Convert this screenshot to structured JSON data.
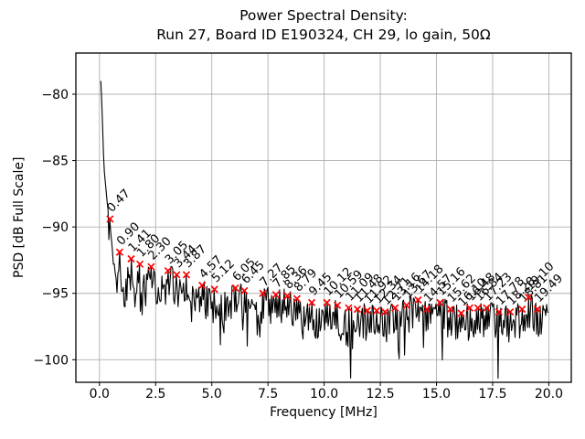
{
  "figure": {
    "background": "#ffffff"
  },
  "chart_data": {
    "type": "line",
    "title_lines": [
      "Power Spectral Density:",
      "Run 27, Board ID E190324, CH 29, lo gain, 50Ω"
    ],
    "xlabel": "Frequency [MHz]",
    "ylabel": "PSD [dB Full Scale]",
    "xlim": [
      -1.05,
      21.0
    ],
    "ylim": [
      -101.7,
      -76.9
    ],
    "grid": true,
    "grid_color": "#b0b0b0",
    "spine_color": "#000000",
    "line_color": "#000000",
    "marker_style": {
      "symbol": "x",
      "color": "#ff0000",
      "size": 7
    },
    "x_ticks": {
      "values": [
        0.0,
        2.5,
        5.0,
        7.5,
        10.0,
        12.5,
        15.0,
        17.5,
        20.0
      ],
      "labels": [
        "0.0",
        "2.5",
        "5.0",
        "7.5",
        "10.0",
        "12.5",
        "15.0",
        "17.5",
        "20.0"
      ]
    },
    "y_ticks": {
      "values": [
        -80,
        -85,
        -90,
        -95,
        -100
      ],
      "labels": [
        "−80",
        "−85",
        "−90",
        "−95",
        "−100"
      ]
    },
    "peaks": [
      {
        "freq_mhz": 0.47,
        "psd_db": -89.4,
        "label": "0.47"
      },
      {
        "freq_mhz": 0.9,
        "psd_db": -91.9,
        "label": "0.90"
      },
      {
        "freq_mhz": 1.41,
        "psd_db": -92.4,
        "label": "1.41"
      },
      {
        "freq_mhz": 1.8,
        "psd_db": -92.8,
        "label": "1.80"
      },
      {
        "freq_mhz": 2.3,
        "psd_db": -93.0,
        "label": "2.30"
      },
      {
        "freq_mhz": 3.05,
        "psd_db": -93.3,
        "label": "3.05"
      },
      {
        "freq_mhz": 3.44,
        "psd_db": -93.6,
        "label": "3.44"
      },
      {
        "freq_mhz": 3.87,
        "psd_db": -93.6,
        "label": "3.87"
      },
      {
        "freq_mhz": 4.57,
        "psd_db": -94.4,
        "label": "4.57"
      },
      {
        "freq_mhz": 5.12,
        "psd_db": -94.7,
        "label": "5.12"
      },
      {
        "freq_mhz": 6.05,
        "psd_db": -94.6,
        "label": "6.05"
      },
      {
        "freq_mhz": 6.45,
        "psd_db": -94.8,
        "label": "6.45"
      },
      {
        "freq_mhz": 7.27,
        "psd_db": -95.0,
        "label": "7.27"
      },
      {
        "freq_mhz": 7.85,
        "psd_db": -95.1,
        "label": "7.85"
      },
      {
        "freq_mhz": 8.36,
        "psd_db": -95.2,
        "label": "8.36"
      },
      {
        "freq_mhz": 8.79,
        "psd_db": -95.4,
        "label": "8.79"
      },
      {
        "freq_mhz": 9.45,
        "psd_db": -95.7,
        "label": "9.45"
      },
      {
        "freq_mhz": 10.12,
        "psd_db": -95.7,
        "label": "10.12"
      },
      {
        "freq_mhz": 10.59,
        "psd_db": -95.9,
        "label": "10.59"
      },
      {
        "freq_mhz": 11.09,
        "psd_db": -96.1,
        "label": "11.09"
      },
      {
        "freq_mhz": 11.48,
        "psd_db": -96.2,
        "label": "11.48"
      },
      {
        "freq_mhz": 11.92,
        "psd_db": -96.3,
        "label": "11.92"
      },
      {
        "freq_mhz": 12.34,
        "psd_db": -96.3,
        "label": "12.34"
      },
      {
        "freq_mhz": 12.71,
        "psd_db": -96.4,
        "label": "12.71"
      },
      {
        "freq_mhz": 13.16,
        "psd_db": -96.1,
        "label": "13.16"
      },
      {
        "freq_mhz": 13.67,
        "psd_db": -95.9,
        "label": "13.67"
      },
      {
        "freq_mhz": 14.18,
        "psd_db": -95.5,
        "label": "14.18"
      },
      {
        "freq_mhz": 14.57,
        "psd_db": -96.2,
        "label": "14.57"
      },
      {
        "freq_mhz": 15.16,
        "psd_db": -95.7,
        "label": "15.16"
      },
      {
        "freq_mhz": 15.62,
        "psd_db": -96.2,
        "label": "15.62"
      },
      {
        "freq_mhz": 16.1,
        "psd_db": -96.5,
        "label": "16.10"
      },
      {
        "freq_mhz": 16.48,
        "psd_db": -96.1,
        "label": "16.48"
      },
      {
        "freq_mhz": 16.84,
        "psd_db": -96.1,
        "label": "16.84"
      },
      {
        "freq_mhz": 17.23,
        "psd_db": -96.1,
        "label": "17.23"
      },
      {
        "freq_mhz": 17.78,
        "psd_db": -96.4,
        "label": "17.78"
      },
      {
        "freq_mhz": 18.28,
        "psd_db": -96.4,
        "label": "18.28"
      },
      {
        "freq_mhz": 18.81,
        "psd_db": -96.2,
        "label": "18.81"
      },
      {
        "freq_mhz": 19.1,
        "psd_db": -95.3,
        "label": "19.10"
      },
      {
        "freq_mhz": 19.49,
        "psd_db": -96.2,
        "label": "19.49"
      }
    ],
    "baseline_anchors": {
      "f": [
        0.06,
        0.1,
        0.2,
        0.35,
        0.5,
        0.62,
        0.75,
        0.9,
        1.05,
        1.2,
        1.41,
        1.6,
        1.8,
        2.0,
        2.3,
        2.6,
        3.05,
        3.44,
        3.87,
        4.2,
        4.57,
        5.0,
        5.4,
        6.05,
        6.45,
        7.0,
        7.27,
        7.85,
        8.36,
        8.79,
        9.1,
        9.45,
        9.8,
        10.12,
        10.59,
        11.0,
        11.48,
        11.92,
        12.34,
        12.71,
        13.16,
        13.67,
        14.18,
        14.57,
        15.16,
        15.62,
        16.1,
        16.48,
        16.84,
        17.23,
        17.78,
        18.28,
        18.81,
        19.1,
        19.49,
        20.0
      ],
      "psd": [
        -79.0,
        -80.5,
        -85.5,
        -88.3,
        -90.3,
        -92.6,
        -93.9,
        -92.2,
        -94.8,
        -94.2,
        -92.8,
        -94.6,
        -93.2,
        -94.6,
        -93.4,
        -94.9,
        -93.7,
        -94.0,
        -94.0,
        -95.2,
        -94.8,
        -95.8,
        -95.9,
        -95.0,
        -95.2,
        -96.5,
        -95.4,
        -95.5,
        -95.6,
        -95.8,
        -96.8,
        -96.1,
        -96.9,
        -96.1,
        -96.3,
        -97.3,
        -96.6,
        -96.7,
        -96.7,
        -96.8,
        -96.5,
        -96.3,
        -95.9,
        -96.6,
        -96.1,
        -96.6,
        -96.9,
        -96.5,
        -96.5,
        -96.5,
        -96.8,
        -96.8,
        -96.6,
        -95.7,
        -96.6,
        -96.3
      ]
    },
    "noise": {
      "seed": 11,
      "base_amplitude_db": 2.8,
      "up_bias_db": 0.9,
      "dip_probability": 0.07,
      "dip_extra_db": 1.8,
      "onset_mhz": 0.55,
      "full_mhz": 1.0
    },
    "sample_step_mhz": 0.04,
    "y_clamp": [
      -101.4,
      -78.9
    ]
  }
}
